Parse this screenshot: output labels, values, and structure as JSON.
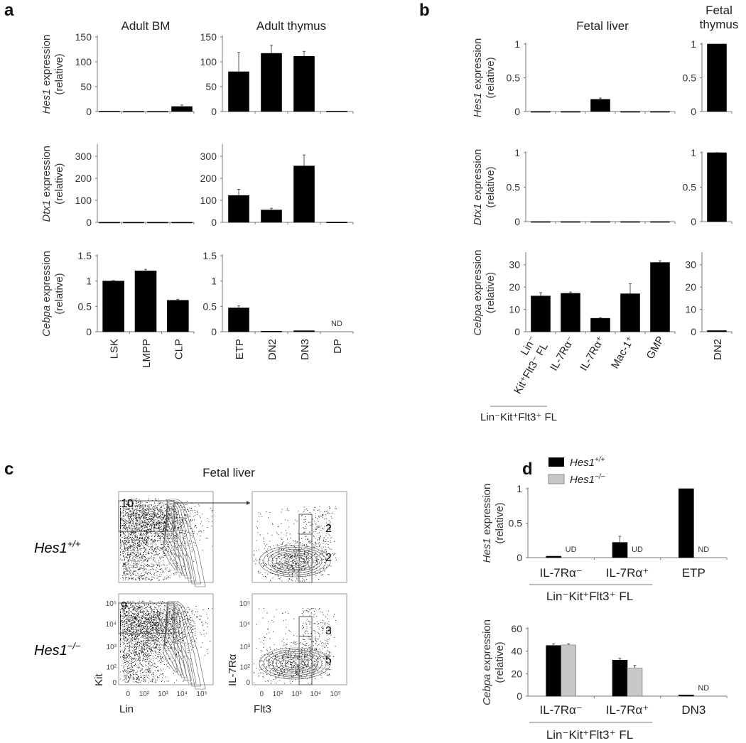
{
  "panels": {
    "a": "a",
    "b": "b",
    "c": "c",
    "d": "d"
  },
  "titles": {
    "adult_bm": "Adult BM",
    "adult_thymus": "Adult thymus",
    "fetal_liver_b": "Fetal liver",
    "fetal_thymus_1": "Fetal",
    "fetal_thymus_2": "thymus",
    "fetal_liver_c": "Fetal liver"
  },
  "ylabels": {
    "hes1": {
      "gene": "Hes1",
      "word": " expression",
      "unit": "(relative)"
    },
    "dtx1": {
      "gene": "Dtx1",
      "word": " expression",
      "unit": "(relative)"
    },
    "cebpa": {
      "gene": "Cebpa",
      "word": " expression",
      "unit": "(relative)"
    }
  },
  "group_labels": {
    "b": "Lin⁻Kit⁺Flt3⁺ FL",
    "d_hes1": "Lin⁻Kit⁺Flt3⁺ FL",
    "d_cebpa": "Lin⁻Kit⁺Flt3⁺ FL"
  },
  "legend": [
    {
      "gene": "Hes1",
      "sup": "+/+",
      "color": "#000000"
    },
    {
      "gene": "Hes1",
      "sup": "−/−",
      "color": "#c8c8c8"
    }
  ],
  "flow": {
    "title": "Fetal liver",
    "rows": [
      {
        "gene": "Hes1",
        "sup": "+/+",
        "kit_gate": "10",
        "il7_gates": [
          "2",
          "2"
        ]
      },
      {
        "gene": "Hes1",
        "sup": "−/−",
        "kit_gate": "9",
        "il7_gates": [
          "3",
          "5"
        ]
      }
    ],
    "x_labels": [
      "Lin",
      "Flt3"
    ],
    "y_labels": [
      "Kit",
      "IL-7Rα"
    ],
    "x_ticks": [
      "0",
      "10²",
      "10³",
      "10⁴",
      "10⁵"
    ],
    "y_ticks": [
      "0",
      "10²",
      "10³",
      "10⁴",
      "10⁵"
    ]
  },
  "chart_data": [
    {
      "id": "a_hes1_bm",
      "type": "bar",
      "panel": "a",
      "ylabel": "hes1",
      "ylim": [
        0,
        150
      ],
      "ticks": [
        0,
        50,
        100,
        150
      ],
      "categories": [
        "",
        "",
        "",
        ""
      ],
      "values": [
        0.5,
        0.3,
        0.3,
        10
      ],
      "errors": [
        0,
        0,
        0,
        3
      ]
    },
    {
      "id": "a_hes1_thy",
      "type": "bar",
      "panel": "a",
      "ylim": [
        0,
        150
      ],
      "ticks": [
        0,
        50,
        100,
        150
      ],
      "categories": [
        "ETP",
        "DN2",
        "DN3",
        "DP"
      ],
      "values": [
        80,
        117,
        111,
        0.5
      ],
      "errors": [
        39,
        16,
        10,
        0
      ]
    },
    {
      "id": "a_dtx1_bm",
      "type": "bar",
      "panel": "a",
      "ylabel": "dtx1",
      "ylim": [
        0,
        350
      ],
      "ticks": [
        0,
        100,
        200,
        300
      ],
      "categories": [
        "",
        "",
        "",
        ""
      ],
      "values": [
        0.3,
        0.3,
        0.3,
        0.3
      ],
      "errors": [
        0,
        0,
        0,
        0
      ]
    },
    {
      "id": "a_dtx1_thy",
      "type": "bar",
      "panel": "a",
      "ylim": [
        0,
        350
      ],
      "ticks": [
        0,
        100,
        200,
        300
      ],
      "categories": [
        "ETP",
        "DN2",
        "DN3",
        "DP"
      ],
      "values": [
        122,
        56,
        256,
        1
      ],
      "errors": [
        28,
        8,
        50,
        0
      ]
    },
    {
      "id": "a_cebpa_bm",
      "type": "bar",
      "panel": "a",
      "ylabel": "cebpa",
      "ylim": [
        0,
        1.5
      ],
      "ticks": [
        0,
        0.5,
        1,
        1.5
      ],
      "categories": [
        "LSK",
        "LMPP",
        "CLP"
      ],
      "values": [
        1.0,
        1.2,
        0.62
      ],
      "errors": [
        0.01,
        0.03,
        0.02
      ],
      "show_categories": true
    },
    {
      "id": "a_cebpa_thy",
      "type": "bar",
      "panel": "a",
      "ylim": [
        0,
        1.5
      ],
      "ticks": [
        0,
        0.5,
        1,
        1.5
      ],
      "categories": [
        "ETP",
        "DN2",
        "DN3",
        "DP"
      ],
      "values": [
        0.47,
        0.01,
        0.02,
        null
      ],
      "errors": [
        0.04,
        0,
        0,
        0
      ],
      "annotations": [
        "",
        "",
        "",
        "ND"
      ],
      "show_categories": true
    },
    {
      "id": "b_hes1_fl",
      "type": "bar",
      "panel": "b",
      "ylabel": "hes1",
      "ylim": [
        0,
        1
      ],
      "ticks": [
        0,
        0.5,
        1
      ],
      "categories": [
        "Lin⁻ Kit⁺Flt3⁻ FL",
        "IL-7Rα⁻",
        "IL-7Rα⁺",
        "Mac-1⁺",
        "GMP"
      ],
      "values": [
        0,
        0,
        0.18,
        0,
        0
      ],
      "errors": [
        0,
        0,
        0.02,
        0,
        0
      ]
    },
    {
      "id": "b_hes1_ft",
      "type": "bar",
      "panel": "b",
      "ylim": [
        0,
        1
      ],
      "ticks": [
        0,
        0.5,
        1
      ],
      "categories": [
        "DN2"
      ],
      "values": [
        1.0
      ],
      "errors": [
        0
      ]
    },
    {
      "id": "b_dtx1_fl",
      "type": "bar",
      "panel": "b",
      "ylabel": "dtx1",
      "ylim": [
        0,
        1
      ],
      "ticks": [
        0,
        0.5,
        1
      ],
      "categories": [
        "Lin⁻ Kit⁺Flt3⁻ FL",
        "IL-7Rα⁻",
        "IL-7Rα⁺",
        "Mac-1⁺",
        "GMP"
      ],
      "values": [
        0,
        0,
        0,
        0,
        0
      ],
      "errors": [
        0,
        0,
        0,
        0,
        0
      ]
    },
    {
      "id": "b_dtx1_ft",
      "type": "bar",
      "panel": "b",
      "ylim": [
        0,
        1
      ],
      "ticks": [
        0,
        0.5,
        1
      ],
      "categories": [
        "DN2"
      ],
      "values": [
        1.0
      ],
      "errors": [
        0.003
      ]
    },
    {
      "id": "b_cebpa_fl",
      "type": "bar",
      "panel": "b",
      "ylabel": "cebpa",
      "ylim": [
        0,
        35
      ],
      "ticks": [
        0,
        10,
        20,
        30
      ],
      "categories": [
        "Lin⁻|Kit⁺Flt3⁻ FL",
        "IL-7Rα⁻",
        "IL-7Rα⁺",
        "Mac-1⁺",
        "GMP"
      ],
      "values": [
        16,
        17.2,
        6,
        17,
        31
      ],
      "errors": [
        1.5,
        0.6,
        0.3,
        4.5,
        0.8
      ],
      "show_categories": true
    },
    {
      "id": "b_cebpa_ft",
      "type": "bar",
      "panel": "b",
      "ylim": [
        0,
        35
      ],
      "ticks": [
        0,
        10,
        20,
        30
      ],
      "categories": [
        "DN2"
      ],
      "values": [
        0.5
      ],
      "errors": [
        0
      ],
      "show_categories": true
    },
    {
      "id": "d_hes1",
      "type": "bar",
      "panel": "d",
      "ylabel": "hes1",
      "ylim": [
        0,
        1
      ],
      "ticks": [
        0,
        0.5,
        1
      ],
      "categories": [
        "IL-7Rα⁻",
        "IL-7Rα⁺",
        "ETP"
      ],
      "series": [
        {
          "name": "Hes1+/+",
          "values": [
            0.02,
            0.22,
            1.0
          ],
          "errors": [
            0,
            0.09,
            0
          ]
        },
        {
          "name": "Hes1−/−",
          "values": [
            null,
            null,
            null
          ],
          "errors": [
            0,
            0,
            0
          ],
          "annotations": [
            "UD",
            "UD",
            "ND"
          ]
        }
      ],
      "show_categories": true
    },
    {
      "id": "d_cebpa",
      "type": "bar",
      "panel": "d",
      "ylabel": "cebpa",
      "ylim": [
        0,
        60
      ],
      "ticks": [
        0,
        20,
        40,
        60
      ],
      "categories": [
        "IL-7Rα⁻",
        "IL-7Rα⁺",
        "DN3"
      ],
      "series": [
        {
          "name": "Hes1+/+",
          "values": [
            45,
            32,
            1
          ],
          "errors": [
            1.5,
            1.8,
            0
          ]
        },
        {
          "name": "Hes1−/−",
          "values": [
            45.5,
            25,
            null
          ],
          "errors": [
            1,
            2.5,
            0
          ],
          "annotations": [
            "",
            "",
            "ND"
          ]
        }
      ],
      "show_categories": true
    }
  ]
}
